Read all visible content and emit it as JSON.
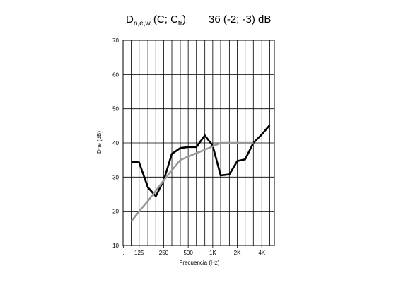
{
  "chart_data": {
    "type": "line",
    "title": {
      "symbol_main": "D",
      "symbol_sub": "n,e,w",
      "paren_open": " (C; C",
      "paren_sub": "tr",
      "paren_close": ")",
      "value": "36 (-2; -3) dB"
    },
    "xlabel": "Frecuencia (Hz)",
    "ylabel": "Dne (dB)",
    "ylim": [
      10,
      70
    ],
    "yticks": [
      10,
      20,
      30,
      40,
      50,
      60,
      70
    ],
    "x_bands_hz": [
      100,
      125,
      160,
      200,
      250,
      315,
      400,
      500,
      630,
      800,
      1000,
      1250,
      1600,
      2000,
      2500,
      3150,
      4000,
      5000
    ],
    "x_tick_labels": [
      {
        "band_hz": 80,
        "label": "."
      },
      {
        "band_hz": 125,
        "label": "125"
      },
      {
        "band_hz": 250,
        "label": "250"
      },
      {
        "band_hz": 500,
        "label": "500"
      },
      {
        "band_hz": 1000,
        "label": "1K"
      },
      {
        "band_hz": 2000,
        "label": "2K"
      },
      {
        "band_hz": 4000,
        "label": "4K"
      }
    ],
    "grid": true,
    "series": [
      {
        "color": "#000000",
        "x": [
          100,
          125,
          160,
          200,
          250,
          315,
          400,
          500,
          630,
          800,
          1000,
          1250,
          1600,
          2000,
          2500,
          3150,
          4000,
          5000
        ],
        "y": [
          34.5,
          34.3,
          27.0,
          24.4,
          29.0,
          36.8,
          38.5,
          38.8,
          38.8,
          42.2,
          39.2,
          30.5,
          30.8,
          34.7,
          35.2,
          40.0,
          42.5,
          45.2
        ]
      },
      {
        "color": "#999999",
        "x": [
          100,
          125,
          160,
          200,
          250,
          315,
          400,
          500,
          630,
          800,
          1000,
          1250,
          1600,
          2000,
          2500,
          3150
        ],
        "y": [
          17.0,
          20.0,
          23.0,
          26.0,
          29.0,
          32.0,
          35.0,
          36.0,
          37.0,
          38.0,
          39.0,
          40.0,
          40.0,
          40.0,
          40.0,
          40.0
        ]
      }
    ]
  }
}
